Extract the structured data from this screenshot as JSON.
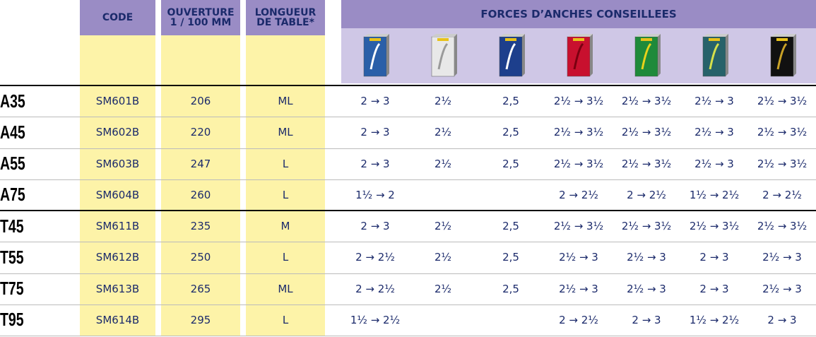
{
  "header": {
    "row_label_columns": [
      "CODE",
      [
        "OUVERTURE",
        "1 / 100 MM"
      ],
      [
        "LONGUEUR",
        "DE TABLE*"
      ]
    ],
    "group_title": "FORCES D’ANCHES CONSEILLEES"
  },
  "table": {
    "rows": [
      {
        "label": "A35",
        "code": "SM601B",
        "ouverture": "206",
        "longueur": "ML",
        "forces": [
          "2 → 3",
          "2½",
          "2,5",
          "2½ → 3½",
          "2½ → 3½",
          "2½ → 3",
          "2½ → 3½"
        ]
      },
      {
        "label": "A45",
        "code": "SM602B",
        "ouverture": "220",
        "longueur": "ML",
        "forces": [
          "2 → 3",
          "2½",
          "2,5",
          "2½ → 3½",
          "2½ → 3½",
          "2½ → 3",
          "2½ → 3½"
        ]
      },
      {
        "label": "A55",
        "code": "SM603B",
        "ouverture": "247",
        "longueur": "L",
        "forces": [
          "2 → 3",
          "2½",
          "2,5",
          "2½ → 3½",
          "2½ → 3½",
          "2½ → 3",
          "2½ → 3½"
        ]
      },
      {
        "label": "A75",
        "code": "SM604B",
        "ouverture": "260",
        "longueur": "L",
        "forces": [
          "1½ → 2",
          null,
          null,
          "2 → 2½",
          "2 → 2½",
          "1½ → 2½",
          "2 → 2½"
        ]
      },
      {
        "label": "T45",
        "code": "SM611B",
        "ouverture": "235",
        "longueur": "M",
        "forces": [
          "2 → 3",
          "2½",
          "2,5",
          "2½ → 3½",
          "2½ → 3½",
          "2½ → 3½",
          "2½ → 3½"
        ]
      },
      {
        "label": "T55",
        "code": "SM612B",
        "ouverture": "250",
        "longueur": "L",
        "forces": [
          "2 → 2½",
          "2½",
          "2,5",
          "2½ → 3",
          "2½ → 3",
          "2 → 3",
          "2½ → 3"
        ]
      },
      {
        "label": "T75",
        "code": "SM613B",
        "ouverture": "265",
        "longueur": "ML",
        "forces": [
          "2 → 2½",
          "2½",
          "2,5",
          "2½ → 3",
          "2½ → 3",
          "2 → 3",
          "2½ → 3"
        ]
      },
      {
        "label": "T95",
        "code": "SM614B",
        "ouverture": "295",
        "longueur": "L",
        "forces": [
          "1½ → 2½",
          null,
          null,
          "2 → 2½",
          "2 → 3",
          "1½ → 2½",
          "2 → 3"
        ]
      }
    ]
  }
}
